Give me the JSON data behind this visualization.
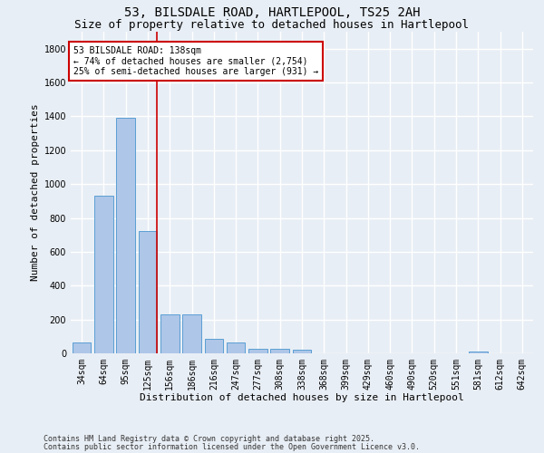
{
  "title_line1": "53, BILSDALE ROAD, HARTLEPOOL, TS25 2AH",
  "title_line2": "Size of property relative to detached houses in Hartlepool",
  "xlabel": "Distribution of detached houses by size in Hartlepool",
  "ylabel": "Number of detached properties",
  "categories": [
    "34sqm",
    "64sqm",
    "95sqm",
    "125sqm",
    "156sqm",
    "186sqm",
    "216sqm",
    "247sqm",
    "277sqm",
    "308sqm",
    "338sqm",
    "368sqm",
    "399sqm",
    "429sqm",
    "460sqm",
    "490sqm",
    "520sqm",
    "551sqm",
    "581sqm",
    "612sqm",
    "642sqm"
  ],
  "values": [
    65,
    930,
    1390,
    720,
    230,
    230,
    85,
    65,
    25,
    25,
    20,
    0,
    0,
    0,
    0,
    0,
    0,
    0,
    10,
    0,
    0
  ],
  "bar_color": "#aec6e8",
  "bar_edge_color": "#5a9fd4",
  "highlight_line_index": 3,
  "annotation_text": "53 BILSDALE ROAD: 138sqm\n← 74% of detached houses are smaller (2,754)\n25% of semi-detached houses are larger (931) →",
  "annotation_box_color": "#ffffff",
  "annotation_box_edge_color": "#cc0000",
  "ylim": [
    0,
    1900
  ],
  "yticks": [
    0,
    200,
    400,
    600,
    800,
    1000,
    1200,
    1400,
    1600,
    1800
  ],
  "background_color": "#e8eef5",
  "grid_color": "#ffffff",
  "footer_line1": "Contains HM Land Registry data © Crown copyright and database right 2025.",
  "footer_line2": "Contains public sector information licensed under the Open Government Licence v3.0.",
  "title_fontsize": 10,
  "subtitle_fontsize": 9,
  "axis_label_fontsize": 8,
  "tick_fontsize": 7,
  "annotation_fontsize": 7,
  "footer_fontsize": 6
}
